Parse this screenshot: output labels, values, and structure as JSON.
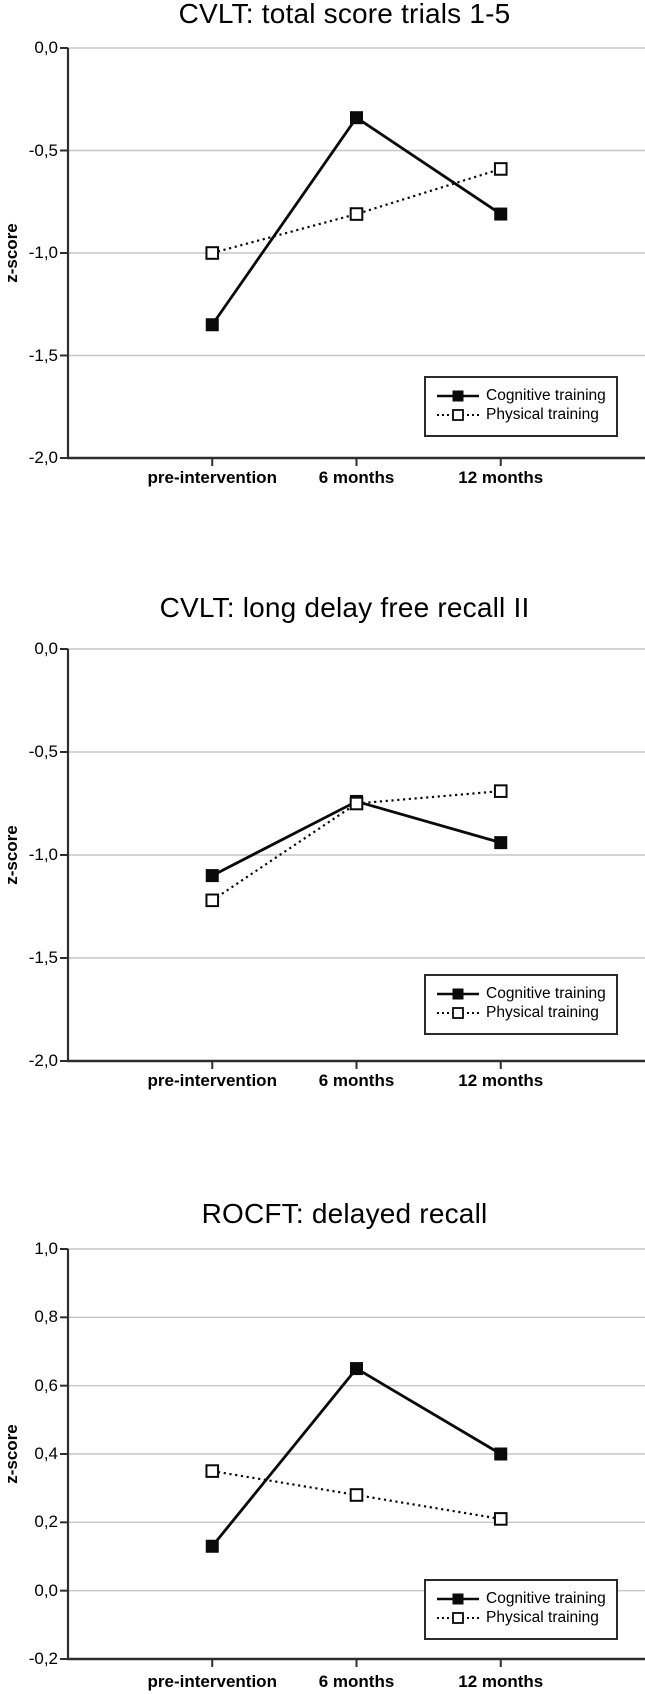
{
  "figure": {
    "y_axis_label": "z-score",
    "x_categories": [
      "pre-intervention",
      "6 months",
      "12 months"
    ],
    "colors": {
      "line": "#0a0a0a",
      "gridline": "#c6c6c6",
      "axis": "#2e2e2e",
      "background": "#ffffff"
    }
  },
  "chart_data": [
    {
      "type": "line",
      "title": "CVLT: total score trials 1-5",
      "xlabel": "",
      "ylabel": "z-score",
      "categories": [
        "pre-intervention",
        "6 months",
        "12 months"
      ],
      "ylim": [
        -2.0,
        0.0
      ],
      "ytick_labels": [
        "0,0",
        "-0,5",
        "-1,0",
        "-1,5",
        "-2,0"
      ],
      "ytick_values": [
        0.0,
        -0.5,
        -1.0,
        -1.5,
        -2.0
      ],
      "grid": "horizontal",
      "legend_position": "bottom-right",
      "series": [
        {
          "name": "Cognitive training",
          "line_style": "solid",
          "marker": "filled-square",
          "values": [
            -1.35,
            -0.34,
            -0.81
          ]
        },
        {
          "name": "Physical training",
          "line_style": "dotted",
          "marker": "open-square",
          "values": [
            -1.0,
            -0.81,
            -0.59
          ]
        }
      ]
    },
    {
      "type": "line",
      "title": "CVLT: long delay free recall II",
      "xlabel": "",
      "ylabel": "z-score",
      "categories": [
        "pre-intervention",
        "6 months",
        "12 months"
      ],
      "ylim": [
        -2.0,
        0.0
      ],
      "ytick_labels": [
        "0,0",
        "-0,5",
        "-1,0",
        "-1,5",
        "-2,0"
      ],
      "ytick_values": [
        0.0,
        -0.5,
        -1.0,
        -1.5,
        -2.0
      ],
      "grid": "horizontal",
      "legend_position": "bottom-right",
      "series": [
        {
          "name": "Cognitive training",
          "line_style": "solid",
          "marker": "filled-square",
          "values": [
            -1.1,
            -0.74,
            -0.94
          ]
        },
        {
          "name": "Physical training",
          "line_style": "dotted",
          "marker": "open-square",
          "values": [
            -1.22,
            -0.75,
            -0.69
          ]
        }
      ]
    },
    {
      "type": "line",
      "title": "ROCFT: delayed recall",
      "xlabel": "",
      "ylabel": "z-score",
      "categories": [
        "pre-intervention",
        "6 months",
        "12 months"
      ],
      "ylim": [
        -0.2,
        1.0
      ],
      "ytick_labels": [
        "1,0",
        "0,8",
        "0,6",
        "0,4",
        "0,2",
        "0,0",
        "-0,2"
      ],
      "ytick_values": [
        1.0,
        0.8,
        0.6,
        0.4,
        0.2,
        0.0,
        -0.2
      ],
      "grid": "horizontal",
      "legend_position": "bottom-right",
      "series": [
        {
          "name": "Cognitive training",
          "line_style": "solid",
          "marker": "filled-square",
          "values": [
            0.13,
            0.65,
            0.4
          ]
        },
        {
          "name": "Physical training",
          "line_style": "dotted",
          "marker": "open-square",
          "values": [
            0.35,
            0.28,
            0.21
          ]
        }
      ]
    }
  ]
}
